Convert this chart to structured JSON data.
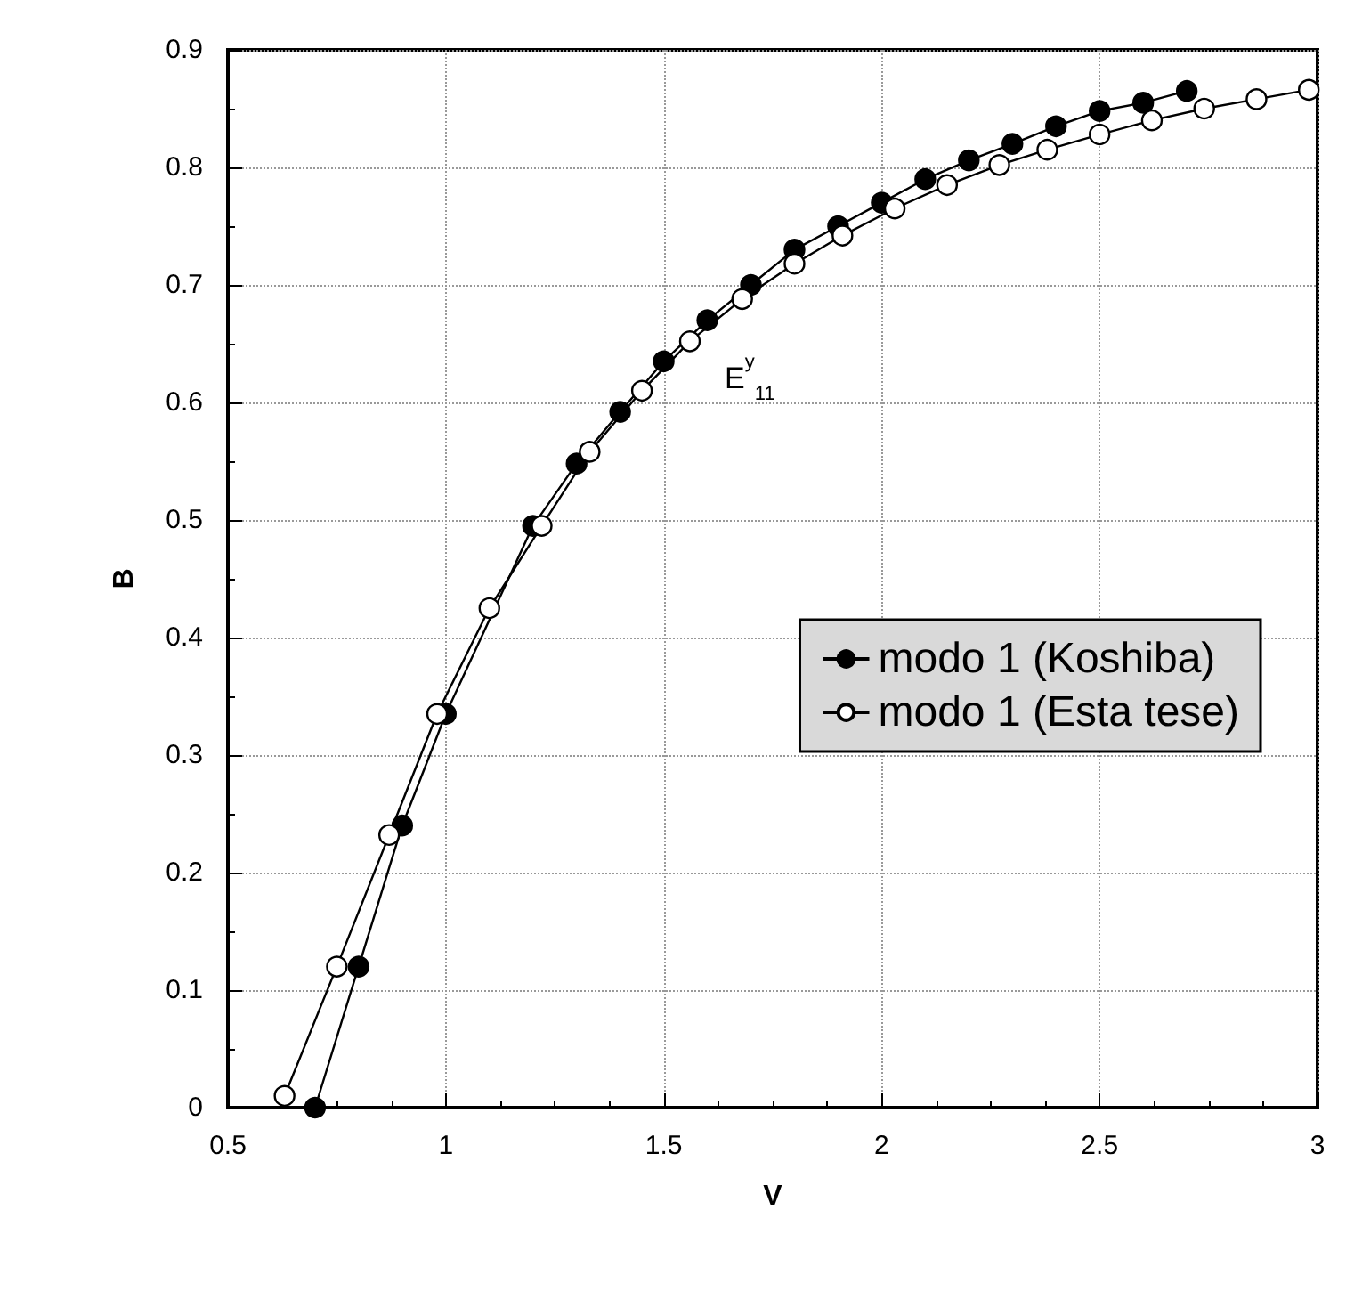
{
  "chart_data": {
    "type": "line",
    "xlabel": "V",
    "ylabel": "B",
    "xlim": [
      0.5,
      3
    ],
    "xticks": [
      0.5,
      1,
      1.5,
      2,
      2.5,
      3
    ],
    "ylim": [
      0,
      0.9
    ],
    "yticks": [
      0,
      0.1,
      0.2,
      0.3,
      0.4,
      0.5,
      0.6,
      0.7,
      0.8,
      0.9
    ],
    "grid": true,
    "legend": "right",
    "line_style": "solid",
    "annotations": [
      "E$^{y}$$_{11}$"
    ],
    "series": [
      {
        "name": "modo 1 (Koshiba)",
        "color": "#000000",
        "marker": "circle",
        "x": [
          0.7,
          0.8,
          0.9,
          1.0,
          1.1,
          1.2,
          1.3,
          1.4,
          1.5,
          1.6,
          1.7,
          1.8,
          1.9,
          2.0,
          2.1,
          2.2,
          2.3,
          2.4,
          2.5,
          2.6,
          2.7
        ],
        "values": [
          0,
          0.12,
          0.24,
          0.335,
          null,
          0.495,
          0.548,
          0.592,
          0.635,
          0.67,
          0.7,
          0.73,
          0.75,
          0.77,
          0.79,
          0.806,
          0.82,
          0.835,
          0.848,
          0.855,
          0.865
        ]
      },
      {
        "name": "modo 1 (Esta tese)",
        "color": "#ffffff",
        "marker": "circle",
        "x": [
          0.63,
          0.75,
          0.87,
          0.98,
          1.1,
          1.22,
          1.33,
          1.45,
          1.56,
          1.68,
          1.8,
          1.91,
          2.03,
          2.15,
          2.27,
          2.38,
          2.5,
          2.62,
          2.74,
          2.86,
          2.98
        ],
        "values": [
          0.01,
          0.12,
          0.232,
          0.335,
          0.425,
          0.495,
          0.558,
          0.61,
          0.652,
          0.688,
          0.718,
          0.742,
          0.765,
          0.785,
          0.802,
          0.815,
          0.828,
          0.84,
          0.85,
          0.858,
          0.866
        ]
      }
    ]
  }
}
